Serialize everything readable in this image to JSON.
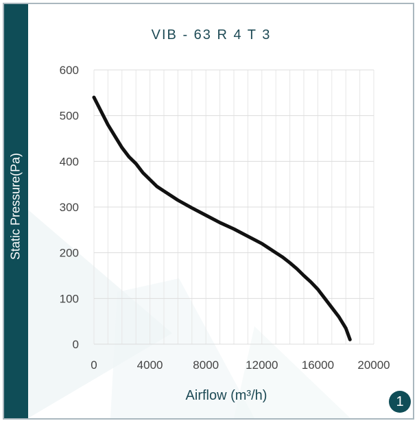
{
  "chart_data": {
    "type": "line",
    "title": "VIB  - 63 R 4 T 3",
    "ylabel": "Static Pressure(Pa)",
    "xlabel": "Airflow (m³/h)",
    "xlim": [
      0,
      20000
    ],
    "ylim": [
      0,
      600
    ],
    "xticks": [
      0,
      4000,
      8000,
      12000,
      16000,
      20000
    ],
    "yticks": [
      0,
      100,
      200,
      300,
      400,
      500,
      600
    ],
    "grid": true,
    "series": [
      {
        "color": "#111111",
        "x": [
          0,
          500,
          1000,
          1500,
          2000,
          2500,
          3000,
          3500,
          4000,
          4500,
          5000,
          6000,
          7000,
          8000,
          9000,
          10000,
          11000,
          12000,
          12500,
          13000,
          13500,
          14000,
          14500,
          15000,
          15500,
          16000,
          16500,
          17000,
          17500,
          18000,
          18300
        ],
        "y": [
          540,
          510,
          480,
          455,
          430,
          410,
          395,
          375,
          360,
          345,
          335,
          315,
          298,
          282,
          266,
          252,
          236,
          220,
          210,
          200,
          190,
          178,
          165,
          150,
          136,
          120,
          100,
          80,
          60,
          35,
          10
        ]
      }
    ]
  },
  "badge": "1"
}
